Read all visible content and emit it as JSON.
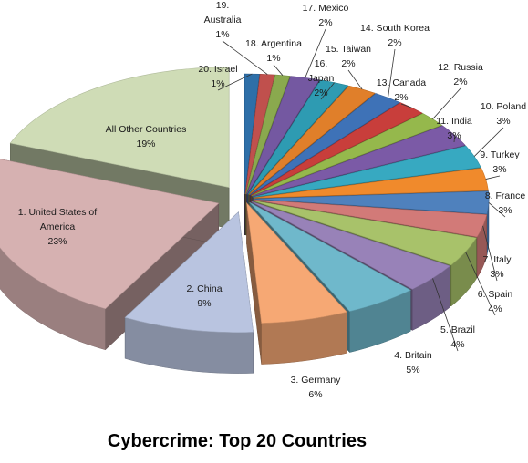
{
  "chart_data": {
    "type": "pie",
    "variant": "3d-exploded",
    "title": "Cybercrime: Top 20 Countries",
    "slices": [
      {
        "label": [
          "20. Israel",
          "1%"
        ],
        "value": 1,
        "color": "#2e6fa8"
      },
      {
        "label": [
          "19.",
          "Australia",
          "1%"
        ],
        "value": 1,
        "color": "#c0504d"
      },
      {
        "label": [
          "18. Argentina",
          "1%"
        ],
        "value": 1,
        "color": "#8aa94e"
      },
      {
        "label": [
          "17. Mexico",
          "2%"
        ],
        "value": 2,
        "color": "#7458a1"
      },
      {
        "label": [
          "16.",
          "Japan",
          "2%"
        ],
        "value": 2,
        "color": "#2e9bb2"
      },
      {
        "label": [
          "15. Taiwan",
          "2%"
        ],
        "value": 2,
        "color": "#e07f2a"
      },
      {
        "label": [
          "14. South Korea",
          "2%"
        ],
        "value": 2,
        "color": "#3e72b7"
      },
      {
        "label": [
          "13. Canada",
          "2%"
        ],
        "value": 2,
        "color": "#c83e3b"
      },
      {
        "label": [
          "12. Russia",
          "2%"
        ],
        "value": 2,
        "color": "#95b84c"
      },
      {
        "label": [
          "11. India",
          "3%"
        ],
        "value": 3,
        "color": "#7b5aa6"
      },
      {
        "label": [
          "10. Poland",
          "3%"
        ],
        "value": 3,
        "color": "#37a9c1"
      },
      {
        "label": [
          "9. Turkey",
          "3%"
        ],
        "value": 3,
        "color": "#f08a2c"
      },
      {
        "label": [
          "8. France",
          "3%"
        ],
        "value": 3,
        "color": "#4f81bd"
      },
      {
        "label": [
          "7. Italy",
          "3%"
        ],
        "value": 3,
        "color": "#d27a78"
      },
      {
        "label": [
          "6. Spain",
          "4%"
        ],
        "value": 4,
        "color": "#a8c26a"
      },
      {
        "label": [
          "5. Brazil",
          "4%"
        ],
        "value": 4,
        "color": "#9882b8"
      },
      {
        "label": [
          "4. Britain",
          "5%"
        ],
        "value": 5,
        "color": "#6fb8cb"
      },
      {
        "label": [
          "3. Germany",
          "6%"
        ],
        "value": 6,
        "color": "#f6a874"
      },
      {
        "label": [
          "2. China",
          "9%"
        ],
        "value": 9,
        "color": "#b9c4e0"
      },
      {
        "label": [
          "1. United States of",
          "America",
          "23%"
        ],
        "value": 23,
        "color": "#d6b1b1"
      },
      {
        "label": [
          "All Other Countries",
          "19%"
        ],
        "value": 19,
        "color": "#cfdcb6"
      }
    ]
  }
}
